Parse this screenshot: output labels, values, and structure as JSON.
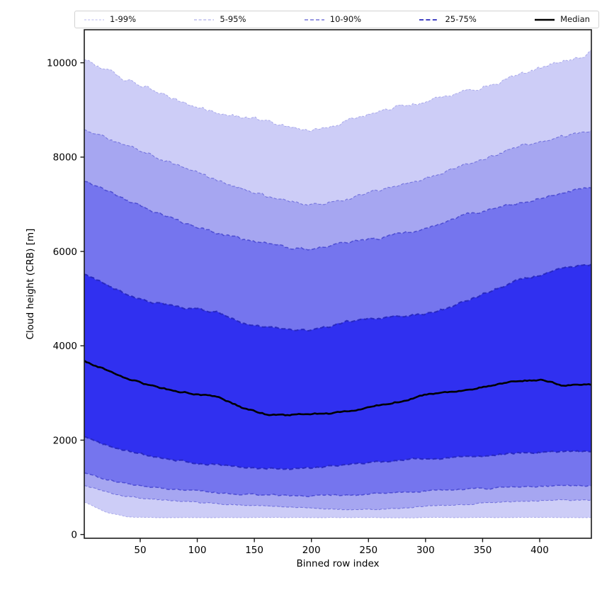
{
  "chart_data": {
    "type": "area",
    "subtype": "percentile-fan-chart",
    "title": "",
    "xlabel": "Binned row index",
    "ylabel": "Cloud height (CRB) [m]",
    "xlim": [
      1,
      445.3
    ],
    "ylim": [
      -80,
      10700
    ],
    "xticks": [
      50,
      100,
      150,
      200,
      250,
      300,
      350,
      400
    ],
    "yticks": [
      0,
      2000,
      4000,
      6000,
      8000,
      10000
    ],
    "grid": false,
    "legend_position": "top",
    "x": [
      1,
      20,
      40,
      60,
      80,
      100,
      120,
      140,
      160,
      180,
      200,
      220,
      240,
      260,
      280,
      300,
      320,
      340,
      360,
      380,
      400,
      420,
      440,
      445
    ],
    "levels": [
      {
        "label": "1-99%",
        "fill": "#cdcdf7",
        "edge": "rgba(50,50,200,0.35)",
        "lw": 0.9,
        "dash": [
          3,
          2.2
        ],
        "noise_low": 7,
        "noise_high": 70,
        "low": [
          690,
          470,
          370,
          358,
          356,
          360,
          358,
          355,
          360,
          357,
          356,
          358,
          360,
          357,
          355,
          358,
          360,
          356,
          358,
          360,
          362,
          360,
          358,
          358
        ],
        "high": [
          10050,
          9840,
          9620,
          9450,
          9230,
          9060,
          8930,
          8840,
          8760,
          8640,
          8560,
          8680,
          8850,
          8980,
          9090,
          9180,
          9290,
          9440,
          9560,
          9720,
          9870,
          10040,
          10180,
          10250
        ]
      },
      {
        "label": "5-95%",
        "fill": "#a6a6f1",
        "edge": "rgba(50,50,200,0.5)",
        "lw": 1.1,
        "dash": [
          4,
          2.6
        ],
        "noise_low": 22,
        "noise_high": 55,
        "low": [
          1040,
          900,
          800,
          745,
          705,
          675,
          650,
          625,
          605,
          585,
          565,
          540,
          520,
          530,
          565,
          600,
          625,
          650,
          675,
          700,
          720,
          730,
          735,
          730
        ],
        "high": [
          8560,
          8400,
          8220,
          8050,
          7860,
          7650,
          7480,
          7330,
          7180,
          7060,
          6990,
          7060,
          7160,
          7290,
          7400,
          7540,
          7700,
          7890,
          8050,
          8200,
          8330,
          8440,
          8540,
          8560
        ]
      },
      {
        "label": "10-90%",
        "fill": "#7575ee",
        "edge": "rgba(45,45,195,0.65)",
        "lw": 1.5,
        "dash": [
          5,
          3
        ],
        "noise_low": 28,
        "noise_high": 50,
        "low": [
          1300,
          1160,
          1060,
          1000,
          950,
          915,
          885,
          860,
          840,
          830,
          820,
          825,
          835,
          870,
          900,
          925,
          945,
          965,
          985,
          1005,
          1025,
          1035,
          1040,
          1040
        ],
        "high": [
          7500,
          7300,
          7060,
          6870,
          6680,
          6500,
          6360,
          6250,
          6160,
          6080,
          6040,
          6130,
          6220,
          6280,
          6380,
          6480,
          6650,
          6800,
          6920,
          7010,
          7130,
          7240,
          7340,
          7360
        ]
      },
      {
        "label": "25-75%",
        "fill": "#3030f0",
        "edge": "rgba(35,35,185,0.85)",
        "lw": 2.0,
        "dash": [
          6,
          3.4
        ],
        "noise_low": 35,
        "noise_high": 45,
        "low": [
          2060,
          1900,
          1760,
          1660,
          1580,
          1520,
          1470,
          1430,
          1400,
          1390,
          1410,
          1460,
          1510,
          1550,
          1580,
          1600,
          1620,
          1660,
          1690,
          1720,
          1740,
          1760,
          1760,
          1755
        ],
        "high": [
          5520,
          5290,
          5060,
          4900,
          4840,
          4770,
          4700,
          4480,
          4390,
          4370,
          4330,
          4440,
          4560,
          4590,
          4620,
          4680,
          4800,
          4990,
          5180,
          5370,
          5500,
          5620,
          5710,
          5720
        ]
      }
    ],
    "median_series": {
      "label": "Median",
      "color": "#000000",
      "lw": 2.6,
      "noise": 26,
      "values": [
        3680,
        3490,
        3300,
        3150,
        3050,
        2970,
        2900,
        2680,
        2550,
        2530,
        2560,
        2570,
        2640,
        2740,
        2830,
        2970,
        3020,
        3080,
        3160,
        3250,
        3280,
        3160,
        3180,
        3180
      ]
    },
    "axis_color": "#1a1a1a",
    "tick_font_px": 13.5,
    "label_font_px": 13.5
  }
}
